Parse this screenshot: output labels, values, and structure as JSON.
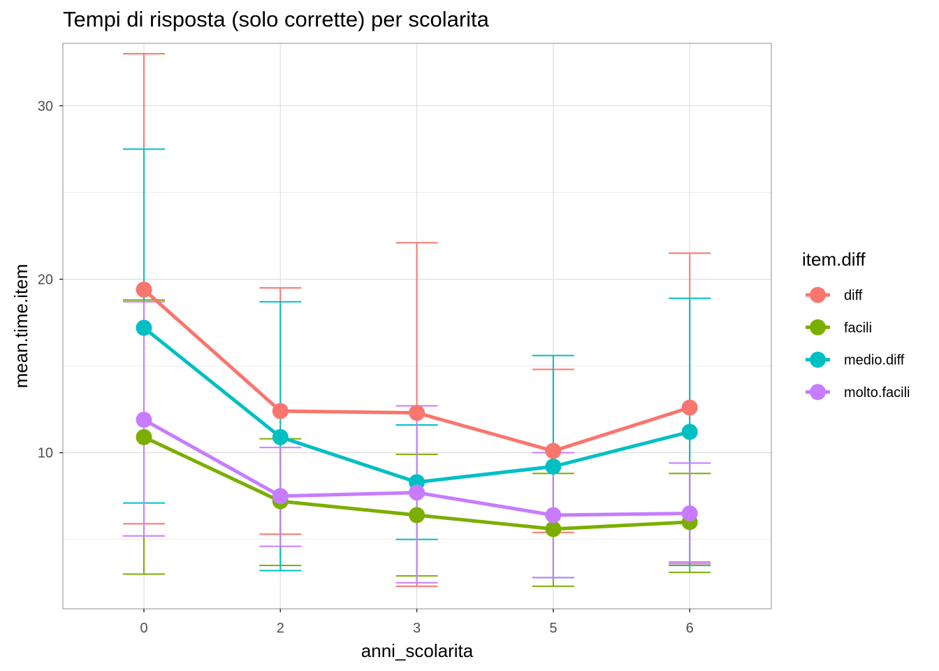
{
  "chart_data": {
    "type": "line",
    "title": "Tempi di risposta (solo corrette) per scolarita",
    "xlabel": "anni_scolarita",
    "ylabel": "mean.time.item",
    "categories": [
      "0",
      "2",
      "3",
      "5",
      "6"
    ],
    "ylim": [
      1,
      33.6
    ],
    "yticks": [
      10,
      20,
      30
    ],
    "grid": true,
    "legend": {
      "title": "item.diff",
      "position": "right"
    },
    "series": [
      {
        "name": "diff",
        "color": "#F8766D",
        "values": [
          19.4,
          12.4,
          12.3,
          10.1,
          12.6
        ],
        "ymin": [
          5.9,
          5.3,
          2.3,
          5.4,
          3.6
        ],
        "ymax": [
          33.0,
          19.5,
          22.1,
          14.8,
          21.5
        ]
      },
      {
        "name": "facili",
        "color": "#7CAE00",
        "values": [
          10.9,
          7.2,
          6.4,
          5.6,
          6.0
        ],
        "ymin": [
          3.0,
          3.5,
          2.9,
          2.3,
          3.1
        ],
        "ymax": [
          18.8,
          10.8,
          9.9,
          8.8,
          8.8
        ]
      },
      {
        "name": "medio.diff",
        "color": "#00BFC4",
        "values": [
          17.2,
          10.9,
          8.3,
          9.2,
          11.2
        ],
        "ymin": [
          7.1,
          3.2,
          5.0,
          2.8,
          3.5
        ],
        "ymax": [
          27.5,
          18.7,
          11.6,
          15.6,
          18.9
        ]
      },
      {
        "name": "molto.facili",
        "color": "#C77CFF",
        "values": [
          11.9,
          7.5,
          7.7,
          6.4,
          6.5
        ],
        "ymin": [
          5.2,
          4.6,
          2.5,
          2.8,
          3.7
        ],
        "ymax": [
          18.7,
          10.3,
          12.7,
          10.0,
          9.4
        ]
      }
    ]
  }
}
